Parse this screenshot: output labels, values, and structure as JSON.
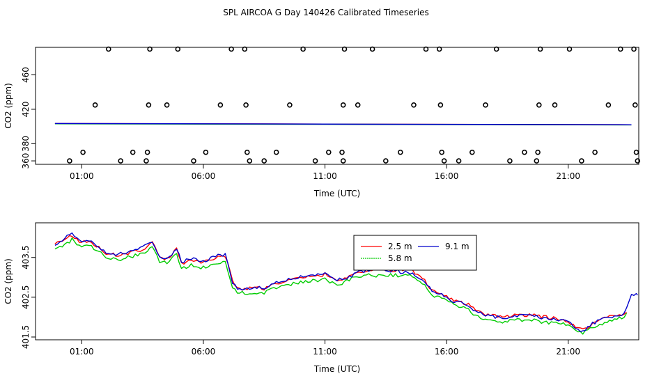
{
  "title": "SPL AIRCOA G  Day 140426  Calibrated Timeseries",
  "colors": {
    "red": "#ff0000",
    "green": "#00cc00",
    "blue": "#0000cc",
    "ink": "#000000"
  },
  "chart_data": [
    {
      "type": "scatter",
      "xlabel": "Time (UTC)",
      "ylabel": "CO2 (ppm)",
      "xlim": [
        -0.9,
        23.9
      ],
      "ylim": [
        356,
        492
      ],
      "xticks": [
        1,
        6,
        11,
        16,
        21
      ],
      "xtick_labels": [
        "01:00",
        "06:00",
        "11:00",
        "16:00",
        "21:00"
      ],
      "yticks": [
        380,
        420,
        460
      ],
      "yticks_extra": [
        360
      ],
      "ytick_labels": [
        "380",
        "420",
        "460"
      ],
      "ytick_labels_extra": [
        "360"
      ],
      "series": [
        {
          "name": "line-2.5",
          "color": "#ff0000",
          "x": [
            -0.1,
            23.6
          ],
          "y": [
            403.4,
            402.0
          ]
        },
        {
          "name": "line-5.8",
          "color": "#00cc00",
          "x": [
            -0.1,
            23.6
          ],
          "y": [
            403.1,
            401.8
          ]
        },
        {
          "name": "line-9.1",
          "color": "#0000cc",
          "x": [
            -0.1,
            23.6
          ],
          "y": [
            403.4,
            402.0
          ]
        }
      ],
      "points": [
        [
          0.5,
          360
        ],
        [
          1.05,
          370
        ],
        [
          1.55,
          425
        ],
        [
          2.1,
          490
        ],
        [
          2.6,
          360
        ],
        [
          3.1,
          370
        ],
        [
          3.65,
          360
        ],
        [
          3.7,
          370
        ],
        [
          3.75,
          425
        ],
        [
          3.8,
          490
        ],
        [
          4.5,
          425
        ],
        [
          4.95,
          490
        ],
        [
          5.6,
          360
        ],
        [
          6.1,
          370
        ],
        [
          6.7,
          425
        ],
        [
          7.15,
          490
        ],
        [
          7.7,
          490
        ],
        [
          7.75,
          425
        ],
        [
          7.8,
          370
        ],
        [
          7.9,
          360
        ],
        [
          8.5,
          360
        ],
        [
          9.0,
          370
        ],
        [
          9.55,
          425
        ],
        [
          10.1,
          490
        ],
        [
          10.6,
          360
        ],
        [
          11.15,
          370
        ],
        [
          11.7,
          370
        ],
        [
          11.75,
          425
        ],
        [
          11.8,
          490
        ],
        [
          11.75,
          360
        ],
        [
          12.35,
          425
        ],
        [
          12.95,
          490
        ],
        [
          13.5,
          360
        ],
        [
          14.1,
          370
        ],
        [
          14.65,
          425
        ],
        [
          15.15,
          490
        ],
        [
          15.7,
          490
        ],
        [
          15.75,
          425
        ],
        [
          15.8,
          370
        ],
        [
          15.9,
          360
        ],
        [
          16.5,
          360
        ],
        [
          17.05,
          370
        ],
        [
          17.6,
          425
        ],
        [
          18.05,
          490
        ],
        [
          18.6,
          360
        ],
        [
          19.2,
          370
        ],
        [
          19.75,
          370
        ],
        [
          19.8,
          425
        ],
        [
          19.85,
          490
        ],
        [
          19.7,
          360
        ],
        [
          20.45,
          425
        ],
        [
          21.05,
          490
        ],
        [
          21.55,
          360
        ],
        [
          22.1,
          370
        ],
        [
          22.65,
          425
        ],
        [
          23.15,
          490
        ],
        [
          23.7,
          490
        ],
        [
          23.75,
          425
        ],
        [
          23.8,
          370
        ],
        [
          23.85,
          360
        ]
      ]
    },
    {
      "type": "line",
      "xlabel": "Time (UTC)",
      "ylabel": "CO2 (ppm)",
      "xlim": [
        -0.9,
        23.9
      ],
      "ylim": [
        401.43,
        404.37
      ],
      "xticks": [
        1,
        6,
        11,
        16,
        21
      ],
      "xtick_labels": [
        "01:00",
        "06:00",
        "11:00",
        "16:00",
        "21:00"
      ],
      "yticks": [
        401.5,
        402.5,
        403.5
      ],
      "ytick_labels": [
        "401.5",
        "402.5",
        "403.5"
      ],
      "legend": {
        "position": "top-right",
        "labels": {
          "s1": "2.5 m",
          "s2": "9.1 m",
          "s3": "5.8 m"
        }
      },
      "knots": {
        "x": [
          -0.1,
          0.3,
          0.6,
          0.9,
          1.2,
          1.6,
          2.0,
          2.5,
          3.0,
          3.5,
          3.9,
          4.2,
          4.5,
          4.9,
          5.1,
          5.5,
          5.9,
          6.2,
          6.6,
          6.9,
          7.2,
          7.4,
          7.7,
          8.1,
          8.5,
          9.0,
          9.5,
          10.0,
          10.5,
          11.0,
          11.5,
          12.0,
          12.5,
          13.0,
          13.5,
          14.0,
          14.5,
          15.0,
          15.4,
          15.8,
          16.3,
          16.8,
          17.2,
          17.6,
          18.0,
          18.5,
          19.0,
          19.5,
          20.0,
          20.5,
          21.0,
          21.3,
          21.6,
          22.0,
          22.5,
          23.0,
          23.3,
          23.6
        ],
        "s1": [
          403.88,
          403.95,
          404.05,
          403.88,
          403.9,
          403.8,
          403.6,
          403.55,
          403.62,
          403.7,
          403.88,
          403.5,
          403.45,
          403.7,
          403.35,
          403.45,
          403.4,
          403.42,
          403.5,
          403.55,
          402.9,
          402.72,
          402.72,
          402.75,
          402.72,
          402.85,
          402.92,
          402.98,
          403.02,
          403.08,
          402.9,
          403.05,
          403.15,
          403.18,
          403.18,
          403.18,
          403.2,
          403.0,
          402.68,
          402.58,
          402.42,
          402.35,
          402.2,
          402.05,
          402.02,
          402.02,
          402.05,
          402.05,
          402.0,
          401.97,
          401.9,
          401.75,
          401.67,
          401.85,
          401.98,
          402.05,
          402.08,
          402.3
        ],
        "s3": [
          403.75,
          403.82,
          403.95,
          403.78,
          403.82,
          403.7,
          403.52,
          403.45,
          403.52,
          403.58,
          403.78,
          403.4,
          403.35,
          403.6,
          403.22,
          403.3,
          403.25,
          403.25,
          403.35,
          403.4,
          402.75,
          402.62,
          402.6,
          402.62,
          402.62,
          402.75,
          402.8,
          402.88,
          402.92,
          402.95,
          402.8,
          402.95,
          403.05,
          403.05,
          403.05,
          403.05,
          403.05,
          402.85,
          402.55,
          402.48,
          402.32,
          402.22,
          402.05,
          401.92,
          401.88,
          401.9,
          401.92,
          401.92,
          401.88,
          401.85,
          401.82,
          401.67,
          401.6,
          401.75,
          401.85,
          401.95,
          401.98,
          402.2
        ],
        "s2": [
          403.84,
          403.98,
          404.1,
          403.9,
          403.92,
          403.82,
          403.64,
          403.58,
          403.66,
          403.74,
          403.92,
          403.52,
          403.47,
          403.72,
          403.38,
          403.47,
          403.42,
          403.44,
          403.54,
          403.58,
          402.88,
          402.7,
          402.7,
          402.74,
          402.72,
          402.88,
          402.95,
          403.0,
          403.06,
          403.12,
          402.92,
          403.02,
          403.15,
          403.2,
          403.18,
          403.15,
          403.1,
          402.95,
          402.66,
          402.56,
          402.4,
          402.32,
          402.16,
          402.03,
          402.0,
          402.0,
          402.03,
          402.03,
          401.98,
          401.95,
          401.88,
          401.72,
          401.64,
          401.84,
          401.96,
          402.04,
          402.06,
          402.55
        ]
      },
      "series": [
        {
          "name": "2.5 m",
          "color": "#ff0000",
          "key": "s1",
          "x_end": 23.45
        },
        {
          "name": "5.8 m",
          "color": "#00cc00",
          "key": "s3",
          "x_end": 23.45
        },
        {
          "name": "9.1 m",
          "color": "#0000cc",
          "key": "s2",
          "x_end": 23.85
        }
      ]
    }
  ]
}
